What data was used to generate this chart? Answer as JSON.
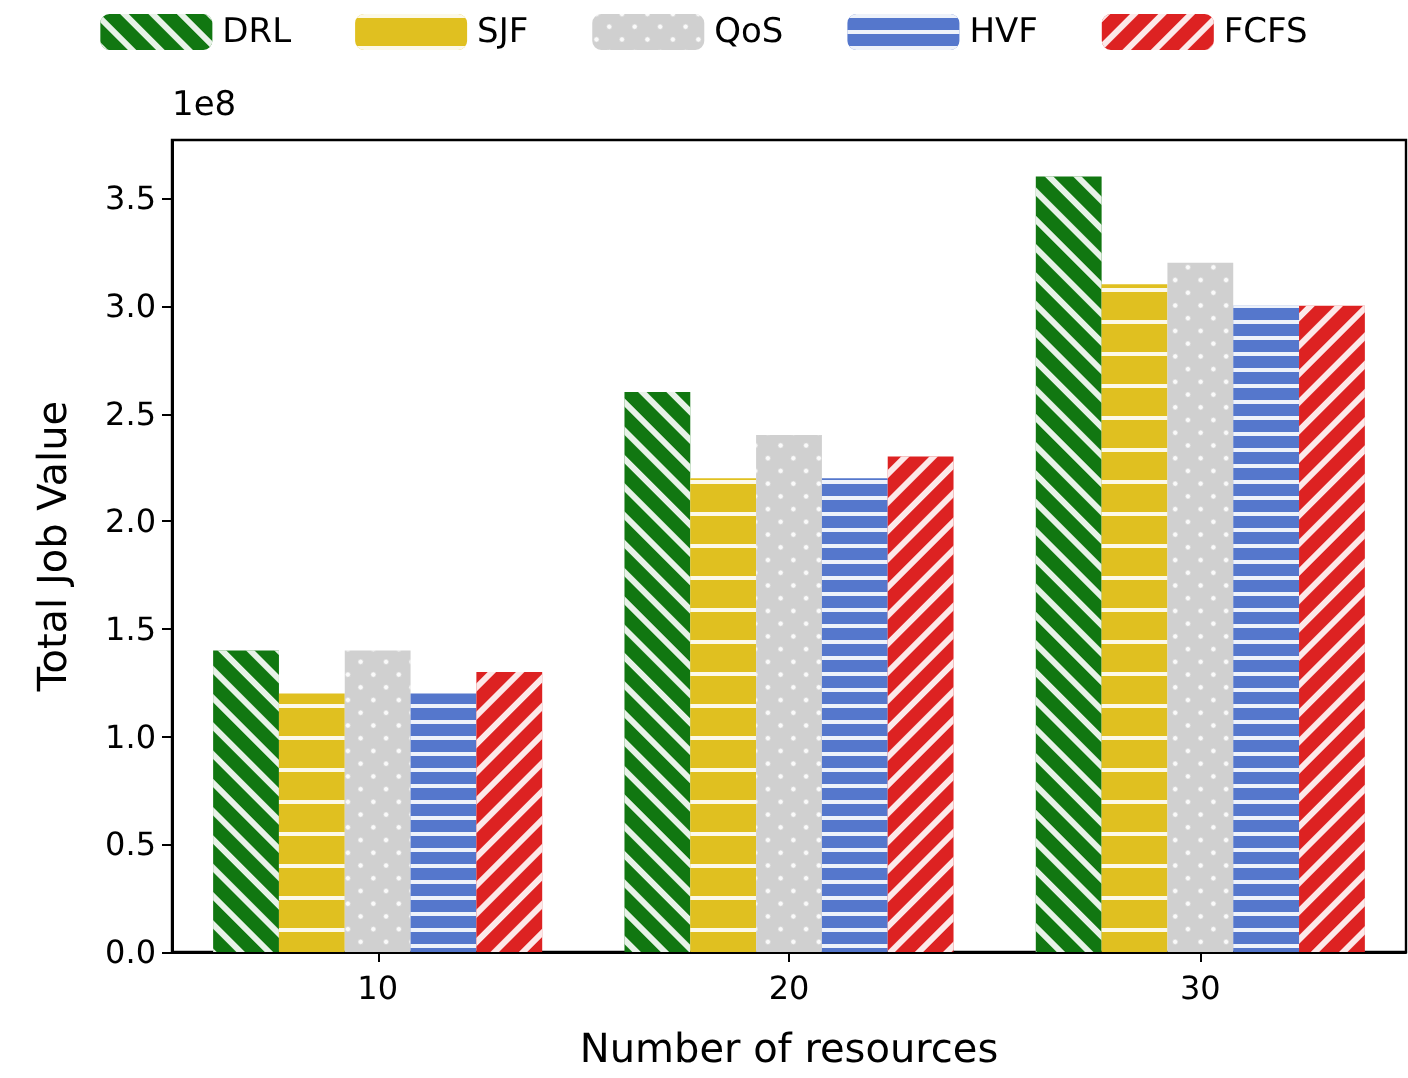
{
  "chart_data": {
    "type": "bar",
    "xlabel": "Number of resources",
    "ylabel": "Total Job Value",
    "categories": [
      "10",
      "20",
      "30"
    ],
    "series": [
      {
        "name": "DRL",
        "color": "#117711",
        "values": [
          1.4,
          2.6,
          3.6
        ]
      },
      {
        "name": "SJF",
        "color": "#e0c020",
        "values": [
          1.2,
          2.2,
          3.1
        ]
      },
      {
        "name": "QoS",
        "color": "#d0d0d0",
        "values": [
          1.4,
          2.4,
          3.2
        ]
      },
      {
        "name": "HVF",
        "color": "#5577cc",
        "values": [
          1.2,
          2.2,
          3.0
        ]
      },
      {
        "name": "FCFS",
        "color": "#dd2222",
        "values": [
          1.3,
          2.3,
          3.0
        ]
      }
    ],
    "ylim": [
      0,
      3.77
    ],
    "yticks": [
      {
        "value": 0,
        "label": "0.0"
      },
      {
        "value": 0.5,
        "label": "0.5"
      },
      {
        "value": 1,
        "label": "1.0"
      },
      {
        "value": 1.5,
        "label": "1.5"
      },
      {
        "value": 2,
        "label": "2.0"
      },
      {
        "value": 2.5,
        "label": "2.5"
      },
      {
        "value": 3,
        "label": "3.0"
      },
      {
        "value": 3.5,
        "label": "3.5"
      }
    ],
    "annotations": [
      "1e8"
    ],
    "legend": "top",
    "grid": false
  }
}
